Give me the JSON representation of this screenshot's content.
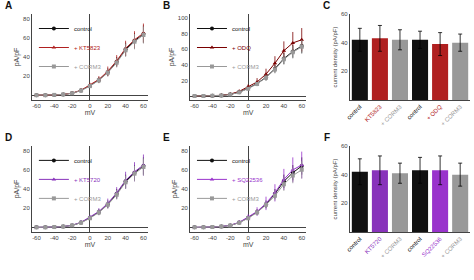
{
  "chart_data": [
    {
      "type": "line",
      "title": "A",
      "xlabel": "mV",
      "ylabel": "pA/pF",
      "x": [
        -60,
        -50,
        -40,
        -30,
        -20,
        -10,
        0,
        10,
        20,
        30,
        40,
        50,
        60
      ],
      "xlim": [
        -65,
        65
      ],
      "xticks": [
        -60,
        -40,
        -20,
        0,
        20,
        40,
        60
      ],
      "ylim": [
        -5,
        85
      ],
      "yticks": [
        20,
        40,
        60,
        80
      ],
      "grid": false,
      "legend": "upper left",
      "series": [
        {
          "name": "control",
          "color": "#111111",
          "marker": "circle",
          "values": [
            0,
            0,
            0.3,
            0.8,
            2.0,
            5.0,
            10,
            16,
            24,
            35,
            48,
            57,
            64
          ],
          "errors": [
            0,
            0,
            0.2,
            0.4,
            0.8,
            1.5,
            2,
            3,
            4,
            5,
            7,
            8,
            9
          ]
        },
        {
          "name": "+ KT5823",
          "color": "#b02020",
          "marker": "triangle-up",
          "values": [
            0,
            0,
            0.3,
            0.8,
            2.2,
            5.2,
            10.5,
            16.5,
            25,
            36,
            49,
            58,
            65
          ],
          "errors": [
            0,
            0,
            0.2,
            0.5,
            1.0,
            1.8,
            2.5,
            3.5,
            5,
            6,
            8,
            9,
            10
          ]
        },
        {
          "name": "+ CORM3",
          "color": "#999999",
          "marker": "square",
          "values": [
            0,
            0,
            0.3,
            0.8,
            2.0,
            4.8,
            9.5,
            15.5,
            23.5,
            34,
            47,
            56,
            63
          ],
          "errors": [
            0,
            0,
            0.2,
            0.4,
            0.8,
            1.5,
            2,
            3,
            4,
            5,
            7,
            8,
            9
          ]
        }
      ]
    },
    {
      "type": "line",
      "title": "B",
      "xlabel": "mV",
      "ylabel": "pA/pF",
      "x": [
        -60,
        -50,
        -40,
        -30,
        -20,
        -10,
        0,
        10,
        20,
        30,
        40,
        50,
        60
      ],
      "xlim": [
        -65,
        65
      ],
      "xticks": [
        -60,
        -40,
        -20,
        0,
        20,
        40,
        60
      ],
      "ylim": [
        -5,
        105
      ],
      "yticks": [
        20,
        40,
        60,
        80,
        100
      ],
      "grid": false,
      "legend": "upper left",
      "series": [
        {
          "name": "control",
          "color": "#111111",
          "marker": "circle",
          "values": [
            0,
            0,
            0.3,
            0.8,
            2.0,
            5.0,
            10,
            16,
            24,
            35,
            48,
            57,
            64
          ],
          "errors": [
            0,
            0,
            0.2,
            0.4,
            0.8,
            1.5,
            2,
            3,
            4,
            5,
            7,
            8,
            9
          ]
        },
        {
          "name": "+ ODQ",
          "color": "#7a0000",
          "marker": "triangle-up",
          "values": [
            0,
            0,
            0.3,
            0.9,
            2.5,
            6.0,
            12,
            18,
            28,
            42,
            58,
            68,
            72
          ],
          "errors": [
            0,
            0,
            0.3,
            0.6,
            1.2,
            2.0,
            3,
            5,
            7,
            9,
            12,
            14,
            15
          ]
        },
        {
          "name": "+ CORM3",
          "color": "#999999",
          "marker": "square",
          "values": [
            0,
            0,
            0.3,
            0.8,
            2.0,
            4.8,
            9.5,
            15.5,
            23.5,
            34,
            47,
            56,
            63
          ],
          "errors": [
            0,
            0,
            0.2,
            0.4,
            0.8,
            1.5,
            2,
            3,
            4,
            5,
            7,
            8,
            9
          ]
        }
      ]
    },
    {
      "type": "bar",
      "title": "C",
      "ylabel": "current density (pA/pF)",
      "categories": [
        "control",
        "KT5823",
        "+ CORM3",
        "control",
        "+ ODQ",
        "+ CORM3"
      ],
      "values": [
        42,
        43,
        42,
        42,
        39,
        40
      ],
      "errors": [
        8,
        9,
        7,
        6,
        8,
        6
      ],
      "colors": [
        "#111111",
        "#b02020",
        "#999999",
        "#111111",
        "#b02020",
        "#999999"
      ],
      "ylim": [
        0,
        60
      ],
      "yticks": [
        20,
        40,
        60
      ],
      "grid": false
    },
    {
      "type": "line",
      "title": "D",
      "xlabel": "mV",
      "ylabel": "pA/pF",
      "x": [
        -60,
        -50,
        -40,
        -30,
        -20,
        -10,
        0,
        10,
        20,
        30,
        40,
        50,
        60
      ],
      "xlim": [
        -65,
        65
      ],
      "xticks": [
        -60,
        -40,
        -20,
        0,
        20,
        40,
        60
      ],
      "ylim": [
        -5,
        85
      ],
      "yticks": [
        20,
        40,
        60,
        80
      ],
      "grid": false,
      "legend": "upper left",
      "series": [
        {
          "name": "control",
          "color": "#111111",
          "marker": "circle",
          "values": [
            0,
            0,
            0.3,
            0.8,
            2.0,
            5.0,
            10,
            16,
            24,
            35,
            48,
            57,
            64
          ],
          "errors": [
            0,
            0,
            0.2,
            0.4,
            0.8,
            1.5,
            2,
            3,
            4,
            5,
            7,
            8,
            9
          ]
        },
        {
          "name": "+ KT5720",
          "color": "#8833bb",
          "marker": "triangle-up",
          "values": [
            0,
            0,
            0.3,
            0.8,
            2.2,
            5.2,
            10.5,
            16.5,
            25,
            36,
            49,
            58,
            65
          ],
          "errors": [
            0,
            0,
            0.2,
            0.5,
            1.0,
            1.8,
            2.5,
            3.5,
            5,
            6,
            9,
            10,
            11
          ]
        },
        {
          "name": "+ CORM3",
          "color": "#999999",
          "marker": "square",
          "values": [
            0,
            0,
            0.3,
            0.8,
            2.0,
            4.8,
            9.5,
            15.5,
            23.5,
            34,
            47,
            56,
            63
          ],
          "errors": [
            0,
            0,
            0.2,
            0.4,
            0.8,
            1.5,
            2,
            3,
            4,
            5,
            7,
            8,
            9
          ]
        }
      ]
    },
    {
      "type": "line",
      "title": "E",
      "xlabel": "mV",
      "ylabel": "pA/pF",
      "x": [
        -60,
        -50,
        -40,
        -30,
        -20,
        -10,
        0,
        10,
        20,
        30,
        40,
        50,
        60
      ],
      "xlim": [
        -65,
        65
      ],
      "xticks": [
        -60,
        -40,
        -20,
        0,
        20,
        40,
        60
      ],
      "ylim": [
        -5,
        85
      ],
      "yticks": [
        20,
        40,
        60,
        80
      ],
      "grid": false,
      "legend": "upper left",
      "series": [
        {
          "name": "control",
          "color": "#111111",
          "marker": "circle",
          "values": [
            0,
            0,
            0.3,
            0.8,
            2.0,
            5.0,
            10,
            16,
            24,
            35,
            48,
            57,
            64
          ],
          "errors": [
            0,
            0,
            0.2,
            0.4,
            0.8,
            1.5,
            2,
            3,
            4,
            5,
            7,
            8,
            9
          ]
        },
        {
          "name": "+ SQ22536",
          "color": "#9933cc",
          "marker": "triangle-up",
          "values": [
            0,
            0,
            0.3,
            0.9,
            2.2,
            5.2,
            10.5,
            16.5,
            25,
            36,
            50,
            60,
            65
          ],
          "errors": [
            0,
            0,
            0.3,
            0.6,
            1.2,
            2.0,
            3,
            4.5,
            7,
            9,
            11,
            13,
            14
          ]
        },
        {
          "name": "+ CORM3",
          "color": "#999999",
          "marker": "square",
          "values": [
            0,
            0,
            0.3,
            0.8,
            2.0,
            4.8,
            9.5,
            15.5,
            23.5,
            33,
            45,
            54,
            60
          ],
          "errors": [
            0,
            0,
            0.2,
            0.4,
            0.8,
            1.5,
            2,
            3,
            4,
            5,
            7,
            8,
            9
          ]
        }
      ]
    },
    {
      "type": "bar",
      "title": "F",
      "ylabel": "current density (pA/pF)",
      "categories": [
        "control",
        "KT5720",
        "+ CORM3",
        "control",
        "SQ22536",
        "+ CORM3"
      ],
      "values": [
        42,
        43,
        41,
        43,
        43,
        40
      ],
      "errors": [
        9,
        10,
        7,
        9,
        10,
        8
      ],
      "colors": [
        "#111111",
        "#8833bb",
        "#999999",
        "#111111",
        "#9933cc",
        "#999999"
      ],
      "ylim": [
        0,
        60
      ],
      "yticks": [
        20,
        40,
        60
      ],
      "grid": false
    }
  ]
}
